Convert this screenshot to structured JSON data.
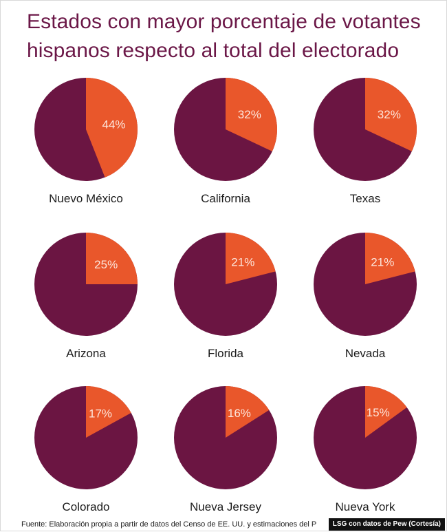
{
  "title": "Estados con mayor porcentaje de votantes hispanos respecto al total del electorado",
  "colors": {
    "title": "#6b1747",
    "rest": "#6b1542",
    "hispanic": "#e9572b",
    "percent_text": "#fde6dc",
    "label_text": "#1b1b1b"
  },
  "footer": {
    "source": "Fuente: Elaboración propia a partir de datos del Censo de EE. UU. y estimaciones del P",
    "credit": "LSG con datos de Pew (Cortesía)"
  },
  "chart_data": {
    "type": "pie",
    "title": "Estados con mayor porcentaje de votantes hispanos respecto al total del electorado",
    "unit": "%",
    "items": [
      {
        "state": "Nuevo México",
        "value": 44,
        "label": "44%"
      },
      {
        "state": "California",
        "value": 32,
        "label": "32%"
      },
      {
        "state": "Texas",
        "value": 32,
        "label": "32%"
      },
      {
        "state": "Arizona",
        "value": 25,
        "label": "25%"
      },
      {
        "state": "Florida",
        "value": 21,
        "label": "21%"
      },
      {
        "state": "Nevada",
        "value": 21,
        "label": "21%"
      },
      {
        "state": "Colorado",
        "value": 17,
        "label": "17%"
      },
      {
        "state": "Nueva Jersey",
        "value": 16,
        "label": "16%"
      },
      {
        "state": "Nueva York",
        "value": 15,
        "label": "15%"
      }
    ]
  }
}
